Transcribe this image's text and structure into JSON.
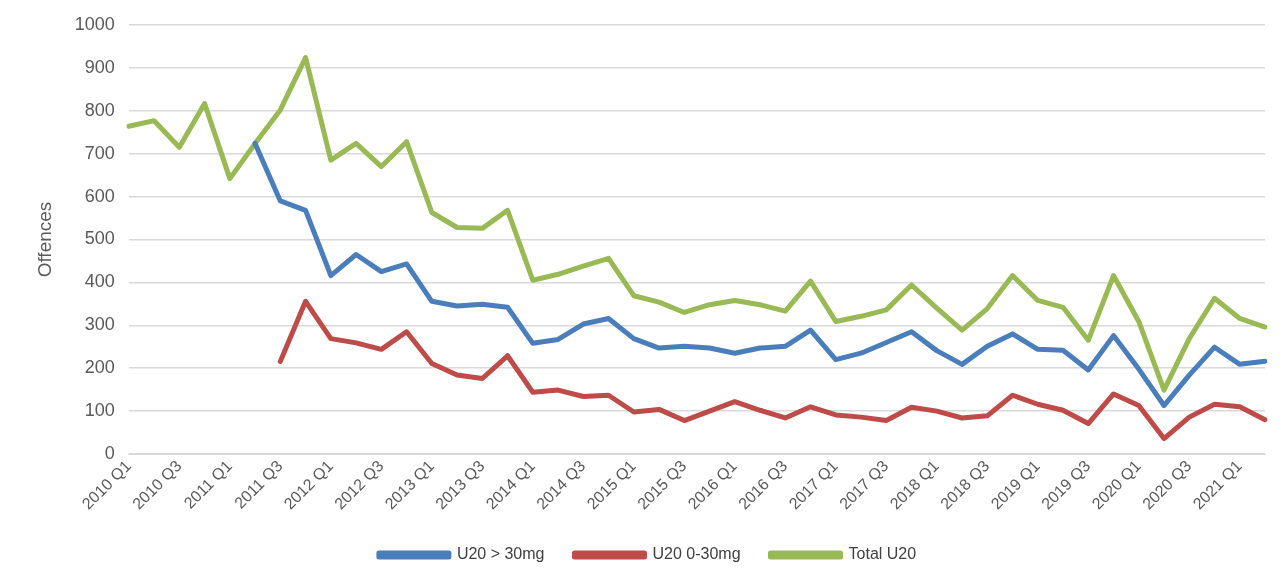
{
  "chart_data": {
    "type": "line",
    "ylabel": "Offences",
    "categories": [
      "2010 Q1",
      null,
      "2010 Q3",
      null,
      "2011 Q1",
      null,
      "2011 Q3",
      null,
      "2012 Q1",
      null,
      "2012 Q3",
      null,
      "2013 Q1",
      null,
      "2013 Q3",
      null,
      "2014 Q1",
      null,
      "2014 Q3",
      null,
      "2015 Q1",
      null,
      "2015 Q3",
      null,
      "2016 Q1",
      null,
      "2016 Q3",
      null,
      "2017 Q1",
      null,
      "2017 Q3",
      null,
      "2018 Q1",
      null,
      "2018 Q3",
      null,
      "2019 Q1",
      null,
      "2019 Q3",
      null,
      "2020 Q1",
      null,
      "2020 Q3",
      null,
      "2021 Q1",
      null
    ],
    "series": [
      {
        "name": "U20 > 30mg",
        "color": "#4a7ebb",
        "values": [
          null,
          null,
          null,
          null,
          null,
          724,
          590,
          568,
          416,
          465,
          425,
          443,
          356,
          345,
          349,
          342,
          258,
          267,
          303,
          316,
          269,
          247,
          251,
          247,
          235,
          247,
          251,
          289,
          220,
          235,
          260,
          285,
          241,
          209,
          251,
          280,
          244,
          242,
          196,
          276,
          198,
          113,
          184,
          249,
          209,
          216
        ]
      },
      {
        "name": "U20 0-30mg",
        "color": "#be4b48",
        "values": [
          null,
          null,
          null,
          null,
          null,
          null,
          216,
          356,
          269,
          259,
          244,
          285,
          211,
          184,
          176,
          229,
          144,
          149,
          134,
          137,
          98,
          104,
          78,
          100,
          122,
          102,
          84,
          110,
          91,
          86,
          78,
          109,
          100,
          84,
          89,
          137,
          116,
          102,
          71,
          140,
          113,
          36,
          86,
          116,
          110,
          80
        ]
      },
      {
        "name": "Total U20",
        "color": "#98b954",
        "values": [
          764,
          777,
          715,
          817,
          642,
          724,
          802,
          924,
          685,
          724,
          670,
          728,
          563,
          528,
          526,
          568,
          405,
          419,
          438,
          456,
          369,
          354,
          330,
          348,
          358,
          348,
          333,
          403,
          309,
          321,
          336,
          394,
          340,
          289,
          339,
          416,
          358,
          342,
          265,
          416,
          309,
          149,
          269,
          363,
          316,
          296
        ]
      }
    ],
    "ylim": [
      0,
      1000
    ],
    "yticks": [
      0,
      100,
      200,
      300,
      400,
      500,
      600,
      700,
      800,
      900,
      1000
    ],
    "grid": "y",
    "legend": "bottom",
    "marker": "none",
    "line_style": "solid"
  }
}
